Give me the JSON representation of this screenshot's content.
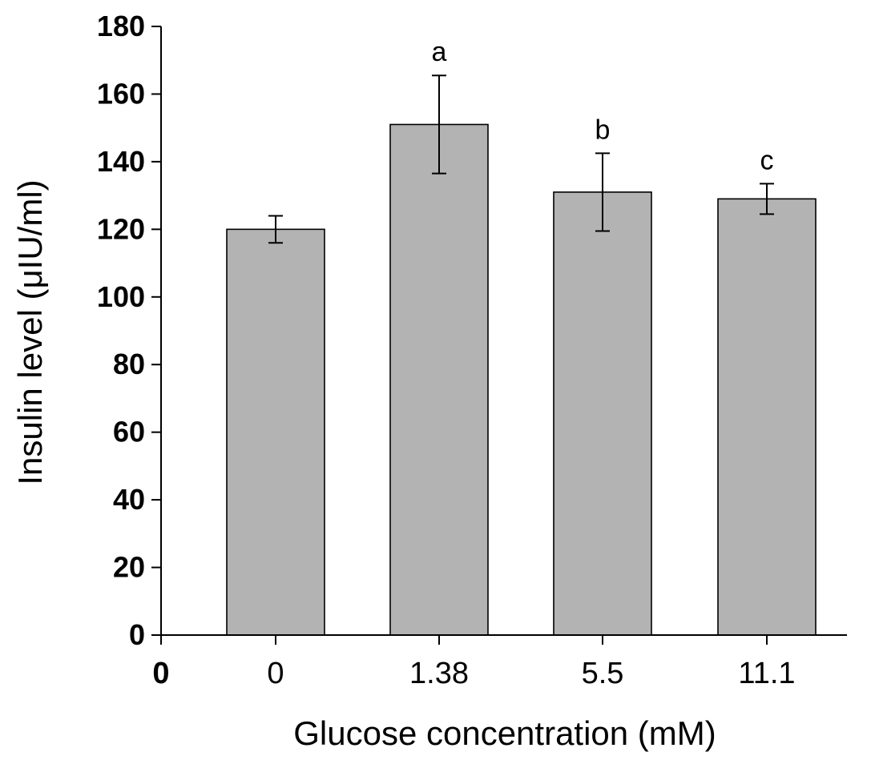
{
  "chart_data": {
    "type": "bar",
    "title": "",
    "xlabel": "Glucose concentration (mM)",
    "ylabel": "Insulin level (μIU/ml)",
    "x_origin_label": "0",
    "categories": [
      "0",
      "1.38",
      "5.5",
      "11.1"
    ],
    "values": [
      120,
      151,
      131,
      129
    ],
    "error": [
      4,
      14.5,
      11.5,
      4.5
    ],
    "annotations": [
      "",
      "a",
      "b",
      "c"
    ],
    "ylim": [
      0,
      180
    ],
    "yticks": [
      0,
      20,
      40,
      60,
      80,
      100,
      120,
      140,
      160,
      180
    ],
    "grid": false,
    "legend": "none",
    "bar_color": "#b3b3b3"
  }
}
